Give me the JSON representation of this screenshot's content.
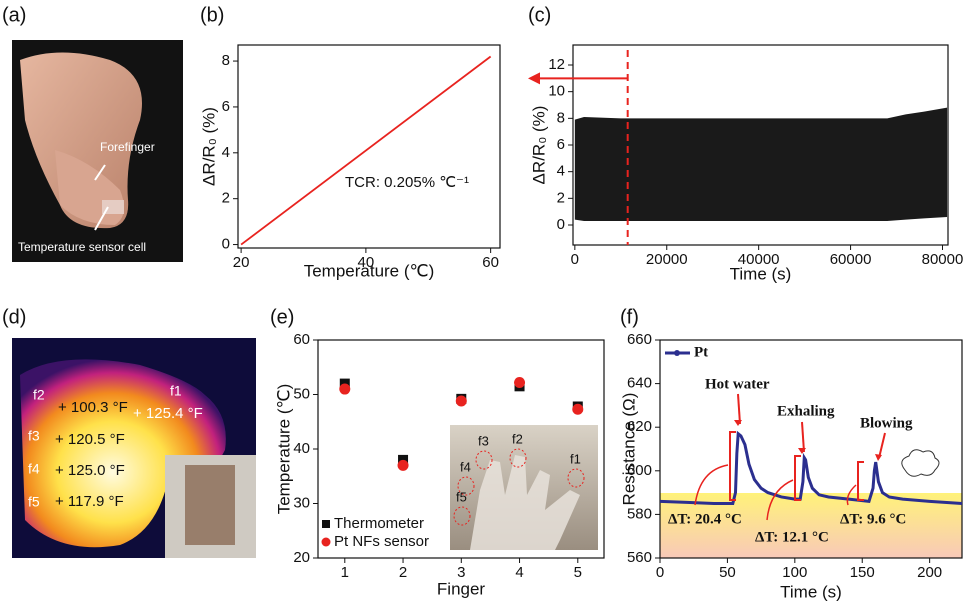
{
  "panels": [
    "(a)",
    "(b)",
    "(c)",
    "(d)",
    "(e)",
    "(f)"
  ],
  "photo_a": {
    "labels": [
      "Forefinger",
      "Temperature sensor cell"
    ]
  },
  "photo_d": {
    "fingers": [
      "f1",
      "f2",
      "f3",
      "f4",
      "f5"
    ],
    "temps": [
      "+ 125.4 °F",
      "+ 100.3 °F",
      "+ 120.5 °F",
      "+ 125.0 °F",
      "+ 117.9 °F"
    ]
  },
  "photo_e": {
    "fingers": [
      "f1",
      "f2",
      "f3",
      "f4",
      "f5"
    ]
  },
  "chart_data": [
    {
      "type": "line",
      "x": [
        20,
        60
      ],
      "values": [
        0,
        8.2
      ],
      "color": "#e8231f",
      "xlim": [
        19.5,
        61.5
      ],
      "ylim": [
        -0.15,
        8.7
      ],
      "xticks": [
        20,
        40,
        60
      ],
      "yticks": [
        0,
        2,
        4,
        6,
        8
      ],
      "x_label": "Temperature (℃)",
      "y_label": "ΔR/R₀ (%)",
      "annotation": "TCR: 0.205% ℃⁻¹"
    },
    {
      "type": "band",
      "x": [
        0,
        2000,
        10000,
        30000,
        50000,
        68000,
        72000,
        76000,
        81000
      ],
      "high": [
        7.9,
        8.1,
        8.0,
        8.0,
        8.0,
        8.0,
        8.3,
        8.5,
        8.8
      ],
      "low": [
        0.4,
        0.3,
        0.3,
        0.3,
        0.3,
        0.3,
        0.4,
        0.5,
        0.6
      ],
      "color": "#1a1a1a",
      "reference_x": 11500,
      "arrow_y": 11,
      "reference_color": "#e8231f",
      "xlim": [
        -400,
        81200
      ],
      "ylim": [
        -1.5,
        13.5
      ],
      "xticks": [
        0,
        20000,
        40000,
        60000,
        80000
      ],
      "yticks": [
        0,
        2,
        4,
        6,
        8,
        10,
        12
      ],
      "x_label": "Time (s)",
      "y_label": "ΔR/R₀ (%)"
    },
    {
      "type": "scatter",
      "x": [
        1,
        2,
        3,
        4,
        5
      ],
      "series": [
        {
          "name": "Thermometer",
          "color": "#111111",
          "marker": "square",
          "values": [
            52,
            38,
            49.2,
            51.5,
            47.8
          ]
        },
        {
          "name": "Pt NFs sensor",
          "color": "#e8231f",
          "marker": "circle",
          "values": [
            51,
            37,
            48.8,
            52.2,
            47.3
          ]
        }
      ],
      "xlim": [
        0.54,
        5.45
      ],
      "ylim": [
        20,
        60
      ],
      "xticks": [
        1,
        2,
        3,
        4,
        5
      ],
      "yticks": [
        20,
        30,
        40,
        50,
        60
      ],
      "x_label": "Finger",
      "y_label": "Temperature (℃)"
    },
    {
      "type": "line",
      "x": [
        0,
        20,
        40,
        54,
        56,
        57,
        58,
        60,
        63,
        66,
        70,
        75,
        80,
        90,
        100,
        104,
        106,
        107,
        108,
        110,
        113,
        118,
        125,
        140,
        155,
        158,
        159,
        160,
        162,
        165,
        170,
        180,
        200,
        224
      ],
      "values": [
        586,
        585.5,
        585,
        585,
        590,
        608,
        617,
        616,
        612,
        603,
        596,
        592,
        590,
        588,
        587,
        587,
        595,
        606,
        605,
        597,
        592,
        589,
        588,
        587,
        586,
        592,
        600,
        604,
        595,
        590,
        588,
        587,
        586,
        585
      ],
      "series_name": "Pt",
      "color": "#2b2f8f",
      "xlim": [
        0,
        224
      ],
      "ylim": [
        560,
        660
      ],
      "xticks": [
        0,
        50,
        100,
        150,
        200
      ],
      "yticks": [
        560,
        580,
        600,
        620,
        640,
        660
      ],
      "x_label": "Time (s)",
      "y_label": "Resistance (Ω)",
      "annotations": [
        "Hot water",
        "Exhaling",
        "Blowing",
        "ΔT: 20.4 °C",
        "ΔT: 12.1 °C",
        "ΔT: 9.6 °C"
      ]
    }
  ]
}
